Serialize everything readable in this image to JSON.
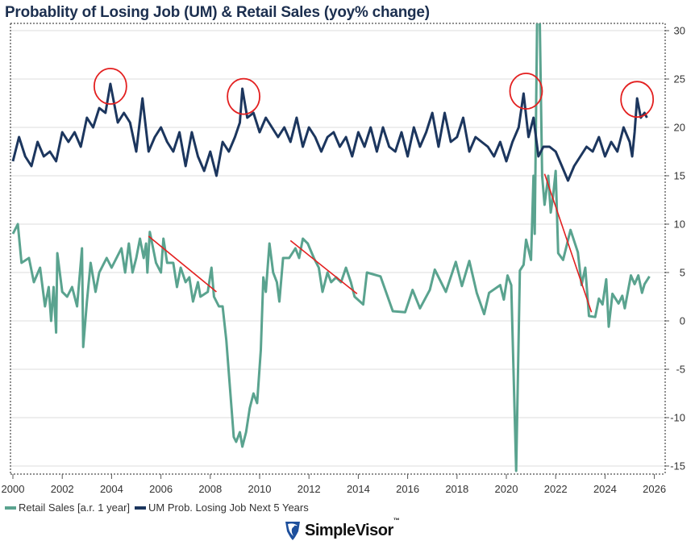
{
  "chart_data": {
    "type": "line",
    "title": "Probablity of Losing Job (UM) & Retail Sales (yoy% change)",
    "xlabel": "",
    "ylabel": "",
    "xlim": [
      2000,
      2026.3
    ],
    "ylim": [
      -15.8,
      30.8
    ],
    "x_ticks": [
      "2000",
      "2002",
      "2004",
      "2006",
      "2008",
      "2010",
      "2012",
      "2014",
      "2016",
      "2018",
      "2020",
      "2022",
      "2024",
      "2026"
    ],
    "y_ticks": [
      "30",
      "25",
      "20",
      "15",
      "10",
      "5",
      "0",
      "-5",
      "-10",
      "-15"
    ],
    "y_axis_side": "right",
    "grid": "horizontal",
    "legend": "bottom-left",
    "series": [
      {
        "name": "Retail Sales [a.r. 1 year]",
        "color": "#5aa38f",
        "points": [
          [
            2000.0,
            9
          ],
          [
            2000.2,
            10
          ],
          [
            2000.35,
            6
          ],
          [
            2000.65,
            6.5
          ],
          [
            2000.85,
            4
          ],
          [
            2001.1,
            5.5
          ],
          [
            2001.3,
            1.5
          ],
          [
            2001.45,
            3.5
          ],
          [
            2001.55,
            0
          ],
          [
            2001.65,
            3.5
          ],
          [
            2001.75,
            -1.2
          ],
          [
            2001.8,
            7
          ],
          [
            2002.0,
            3
          ],
          [
            2002.2,
            2.5
          ],
          [
            2002.4,
            3.5
          ],
          [
            2002.6,
            1.5
          ],
          [
            2002.8,
            7.5
          ],
          [
            2002.85,
            -2.7
          ],
          [
            2003.0,
            2
          ],
          [
            2003.15,
            6
          ],
          [
            2003.35,
            3
          ],
          [
            2003.5,
            5
          ],
          [
            2003.8,
            6.5
          ],
          [
            2004.0,
            5.5
          ],
          [
            2004.2,
            6.5
          ],
          [
            2004.4,
            7.5
          ],
          [
            2004.55,
            5
          ],
          [
            2004.7,
            8
          ],
          [
            2004.85,
            5
          ],
          [
            2005.0,
            6.5
          ],
          [
            2005.15,
            8.5
          ],
          [
            2005.3,
            6.5
          ],
          [
            2005.4,
            8
          ],
          [
            2005.45,
            5
          ],
          [
            2005.55,
            9.2
          ],
          [
            2005.8,
            6
          ],
          [
            2006.0,
            5
          ],
          [
            2006.1,
            8.5
          ],
          [
            2006.25,
            6
          ],
          [
            2006.5,
            6
          ],
          [
            2006.65,
            3.5
          ],
          [
            2006.8,
            5.5
          ],
          [
            2007.0,
            4
          ],
          [
            2007.15,
            4.5
          ],
          [
            2007.3,
            2
          ],
          [
            2007.5,
            4
          ],
          [
            2007.6,
            2.5
          ],
          [
            2007.9,
            3
          ],
          [
            2008.05,
            5.5
          ],
          [
            2008.15,
            2.5
          ],
          [
            2008.35,
            1.5
          ],
          [
            2008.5,
            1.5
          ],
          [
            2008.65,
            -2
          ],
          [
            2008.8,
            -7
          ],
          [
            2008.95,
            -12
          ],
          [
            2009.05,
            -12.5
          ],
          [
            2009.2,
            -11.5
          ],
          [
            2009.3,
            -13
          ],
          [
            2009.45,
            -11.5
          ],
          [
            2009.6,
            -9
          ],
          [
            2009.75,
            -7.5
          ],
          [
            2009.9,
            -8.5
          ],
          [
            2010.05,
            -3
          ],
          [
            2010.15,
            4.5
          ],
          [
            2010.25,
            3
          ],
          [
            2010.4,
            8
          ],
          [
            2010.55,
            5
          ],
          [
            2010.7,
            4
          ],
          [
            2010.8,
            2
          ],
          [
            2010.95,
            6.5
          ],
          [
            2011.2,
            6.5
          ],
          [
            2011.45,
            7.5
          ],
          [
            2011.6,
            6.5
          ],
          [
            2011.75,
            8.5
          ],
          [
            2011.95,
            8
          ],
          [
            2012.2,
            6.5
          ],
          [
            2012.4,
            5.5
          ],
          [
            2012.55,
            3
          ],
          [
            2012.75,
            5
          ],
          [
            2012.9,
            4
          ],
          [
            2013.1,
            4.5
          ],
          [
            2013.3,
            4
          ],
          [
            2013.5,
            5.5
          ],
          [
            2013.7,
            4
          ],
          [
            2013.85,
            2.5
          ],
          [
            2014.2,
            1.7
          ],
          [
            2014.35,
            5
          ],
          [
            2014.9,
            4.6
          ],
          [
            2015.4,
            1
          ],
          [
            2015.9,
            0.9
          ],
          [
            2016.2,
            3.2
          ],
          [
            2016.5,
            1.3
          ],
          [
            2016.9,
            3.2
          ],
          [
            2017.1,
            5.3
          ],
          [
            2017.55,
            3
          ],
          [
            2017.95,
            6.1
          ],
          [
            2018.2,
            3.6
          ],
          [
            2018.5,
            6.2
          ],
          [
            2018.8,
            2.9
          ],
          [
            2019.1,
            0.7
          ],
          [
            2019.3,
            2.9
          ],
          [
            2019.75,
            3.7
          ],
          [
            2019.9,
            2.2
          ],
          [
            2020.05,
            4.7
          ],
          [
            2020.2,
            3.7
          ],
          [
            2020.4,
            -15.5
          ],
          [
            2020.55,
            5.2
          ],
          [
            2020.7,
            5.8
          ],
          [
            2020.8,
            8.4
          ],
          [
            2021.0,
            6.3
          ],
          [
            2021.1,
            15
          ],
          [
            2021.15,
            9
          ],
          [
            2021.25,
            32
          ],
          [
            2021.35,
            32
          ],
          [
            2021.45,
            15
          ],
          [
            2021.55,
            12
          ],
          [
            2021.7,
            15
          ],
          [
            2021.8,
            11.2
          ],
          [
            2021.9,
            13
          ],
          [
            2022.0,
            15.5
          ],
          [
            2022.1,
            7
          ],
          [
            2022.3,
            6.3
          ],
          [
            2022.6,
            9.4
          ],
          [
            2022.9,
            7.1
          ],
          [
            2023.05,
            3.7
          ],
          [
            2023.2,
            5.5
          ],
          [
            2023.35,
            0.5
          ],
          [
            2023.6,
            0.4
          ],
          [
            2023.75,
            2.3
          ],
          [
            2023.9,
            1.7
          ],
          [
            2024.05,
            4.3
          ],
          [
            2024.15,
            -0.6
          ],
          [
            2024.3,
            2.8
          ],
          [
            2024.55,
            1.8
          ],
          [
            2024.7,
            2.6
          ],
          [
            2024.8,
            1.3
          ],
          [
            2025.05,
            4.7
          ],
          [
            2025.2,
            3.8
          ],
          [
            2025.35,
            4.7
          ],
          [
            2025.5,
            2.9
          ],
          [
            2025.6,
            3.8
          ],
          [
            2025.8,
            4.6
          ]
        ]
      },
      {
        "name": "UM Prob. Losing Job Next 5 Years",
        "color": "#1c365e",
        "points": [
          [
            2000.0,
            16.5
          ],
          [
            2000.25,
            19
          ],
          [
            2000.5,
            17
          ],
          [
            2000.75,
            16
          ],
          [
            2001.0,
            18.5
          ],
          [
            2001.25,
            17
          ],
          [
            2001.5,
            17.5
          ],
          [
            2001.75,
            16.5
          ],
          [
            2002.0,
            19.5
          ],
          [
            2002.25,
            18.5
          ],
          [
            2002.5,
            19.5
          ],
          [
            2002.75,
            18
          ],
          [
            2003.0,
            21
          ],
          [
            2003.25,
            20
          ],
          [
            2003.5,
            22
          ],
          [
            2003.75,
            21.5
          ],
          [
            2003.95,
            24.5
          ],
          [
            2004.25,
            20.5
          ],
          [
            2004.5,
            21.5
          ],
          [
            2004.75,
            20.5
          ],
          [
            2005.0,
            17.5
          ],
          [
            2005.25,
            23
          ],
          [
            2005.5,
            17.5
          ],
          [
            2005.75,
            19
          ],
          [
            2006.0,
            20
          ],
          [
            2006.25,
            18.5
          ],
          [
            2006.5,
            17.5
          ],
          [
            2006.75,
            19.5
          ],
          [
            2007.0,
            16
          ],
          [
            2007.25,
            19.5
          ],
          [
            2007.5,
            17
          ],
          [
            2007.75,
            15.5
          ],
          [
            2008.0,
            17.5
          ],
          [
            2008.25,
            15
          ],
          [
            2008.5,
            18.5
          ],
          [
            2008.75,
            17.5
          ],
          [
            2009.0,
            19
          ],
          [
            2009.2,
            20.5
          ],
          [
            2009.3,
            24
          ],
          [
            2009.5,
            21
          ],
          [
            2009.75,
            21.5
          ],
          [
            2010.0,
            19.5
          ],
          [
            2010.25,
            21
          ],
          [
            2010.5,
            20
          ],
          [
            2010.75,
            19
          ],
          [
            2011.0,
            20
          ],
          [
            2011.25,
            18.5
          ],
          [
            2011.5,
            21
          ],
          [
            2011.75,
            18
          ],
          [
            2012.0,
            20
          ],
          [
            2012.25,
            19
          ],
          [
            2012.5,
            17.5
          ],
          [
            2012.75,
            19
          ],
          [
            2013.0,
            19.5
          ],
          [
            2013.25,
            18
          ],
          [
            2013.5,
            19
          ],
          [
            2013.75,
            17
          ],
          [
            2014.0,
            19.5
          ],
          [
            2014.25,
            18
          ],
          [
            2014.5,
            20
          ],
          [
            2014.75,
            17.5
          ],
          [
            2015.0,
            20
          ],
          [
            2015.25,
            18
          ],
          [
            2015.5,
            17.5
          ],
          [
            2015.75,
            19.5
          ],
          [
            2016.0,
            17
          ],
          [
            2016.25,
            20
          ],
          [
            2016.5,
            18
          ],
          [
            2016.75,
            19.5
          ],
          [
            2017.0,
            21.5
          ],
          [
            2017.25,
            18
          ],
          [
            2017.5,
            21.5
          ],
          [
            2017.75,
            18.5
          ],
          [
            2018.0,
            19
          ],
          [
            2018.25,
            21
          ],
          [
            2018.5,
            17.5
          ],
          [
            2018.75,
            19
          ],
          [
            2019.0,
            18.5
          ],
          [
            2019.25,
            18
          ],
          [
            2019.5,
            17
          ],
          [
            2019.75,
            18.5
          ],
          [
            2020.0,
            16.5
          ],
          [
            2020.25,
            18.5
          ],
          [
            2020.5,
            20
          ],
          [
            2020.7,
            23.5
          ],
          [
            2020.9,
            19
          ],
          [
            2021.1,
            21
          ],
          [
            2021.3,
            17
          ],
          [
            2021.5,
            18
          ],
          [
            2021.75,
            18
          ],
          [
            2022.0,
            17.5
          ],
          [
            2022.25,
            16
          ],
          [
            2022.5,
            14.5
          ],
          [
            2022.75,
            16
          ],
          [
            2023.0,
            17
          ],
          [
            2023.25,
            18
          ],
          [
            2023.5,
            17.5
          ],
          [
            2023.75,
            19
          ],
          [
            2024.0,
            17
          ],
          [
            2024.25,
            18.5
          ],
          [
            2024.5,
            17.5
          ],
          [
            2024.75,
            20
          ],
          [
            2025.0,
            18.5
          ],
          [
            2025.1,
            17
          ],
          [
            2025.2,
            19.5
          ],
          [
            2025.3,
            23
          ],
          [
            2025.45,
            21
          ],
          [
            2025.6,
            21.5
          ],
          [
            2025.7,
            21
          ]
        ]
      }
    ],
    "annotations": {
      "color": "#e32020",
      "circles": [
        [
          2003.95,
          24.25
        ],
        [
          2009.35,
          23.2
        ],
        [
          2020.8,
          23.75
        ],
        [
          2025.3,
          22.9
        ]
      ],
      "lines": [
        [
          [
            2005.5,
            8.75
          ],
          [
            2008.25,
            3
          ]
        ],
        [
          [
            2011.25,
            8.3
          ],
          [
            2013.95,
            2.8
          ]
        ],
        [
          [
            2021.55,
            15.2
          ],
          [
            2023.45,
            0.9
          ]
        ]
      ]
    }
  },
  "legend": {
    "items": [
      {
        "label": "Retail Sales [a.r. 1 year]",
        "color": "#5aa38f"
      },
      {
        "label": "UM Prob. Losing Job Next 5 Years",
        "color": "#1c365e"
      }
    ]
  },
  "logo": {
    "text": "SimpleVisor",
    "tm": "™",
    "icon": "eagle-shield-icon"
  }
}
